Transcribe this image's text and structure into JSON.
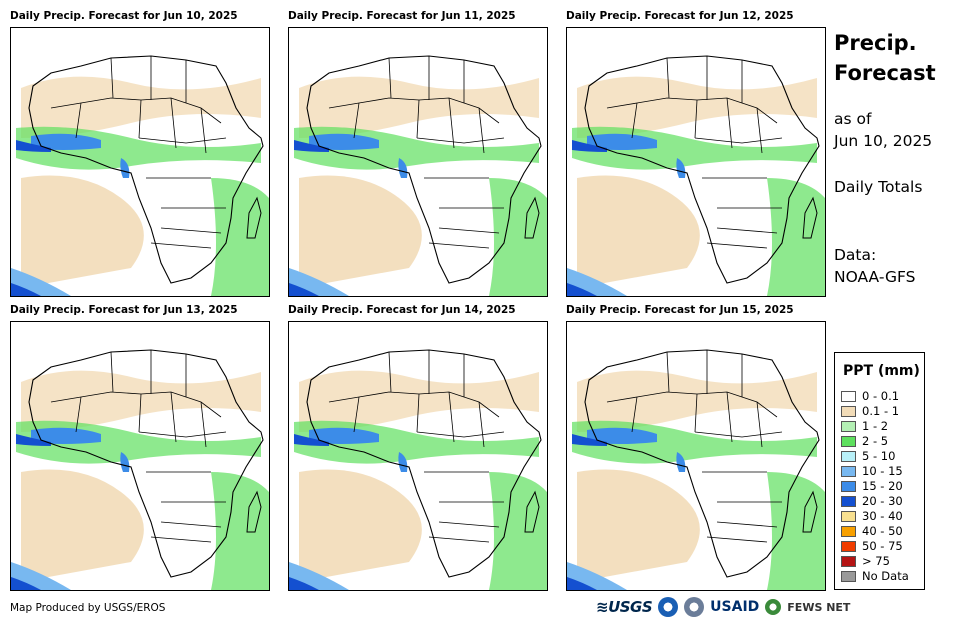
{
  "panels": [
    {
      "title": "Daily Precip. Forecast for Jun 10, 2025"
    },
    {
      "title": "Daily Precip. Forecast for Jun 11, 2025"
    },
    {
      "title": "Daily Precip. Forecast for Jun 12, 2025"
    },
    {
      "title": "Daily Precip. Forecast for Jun 13, 2025"
    },
    {
      "title": "Daily Precip. Forecast for Jun 14, 2025"
    },
    {
      "title": "Daily Precip. Forecast for Jun 15, 2025"
    }
  ],
  "sidebar": {
    "title_line1": "Precip.",
    "title_line2": "Forecast",
    "asof_line1": "as of",
    "asof_line2": "Jun 10, 2025",
    "totals": "Daily Totals",
    "data_line1": "Data:",
    "data_line2": "NOAA-GFS"
  },
  "legend": {
    "title": "PPT (mm)",
    "items": [
      {
        "label": "0 - 0.1",
        "color": "#ffffff"
      },
      {
        "label": "0.1 - 1",
        "color": "#f2dcb8"
      },
      {
        "label": "1 - 2",
        "color": "#b4f0b4"
      },
      {
        "label": "2 - 5",
        "color": "#5ee05e"
      },
      {
        "label": "5 - 10",
        "color": "#b8f0f8"
      },
      {
        "label": "10 - 15",
        "color": "#78b8f0"
      },
      {
        "label": "15 - 20",
        "color": "#3c8ce8"
      },
      {
        "label": "20 - 30",
        "color": "#1450d0"
      },
      {
        "label": "30 - 40",
        "color": "#f8e090"
      },
      {
        "label": "40 - 50",
        "color": "#f8a000"
      },
      {
        "label": "50 - 75",
        "color": "#f03c00"
      },
      {
        "label": "> 75",
        "color": "#b41414"
      },
      {
        "label": "No Data",
        "color": "#999999"
      }
    ]
  },
  "footer": {
    "credit": "Map Produced by USGS/EROS",
    "logo_usgs": "≋USGS",
    "logo_usaid": "USAID",
    "logo_fews": "FEWS NET"
  }
}
